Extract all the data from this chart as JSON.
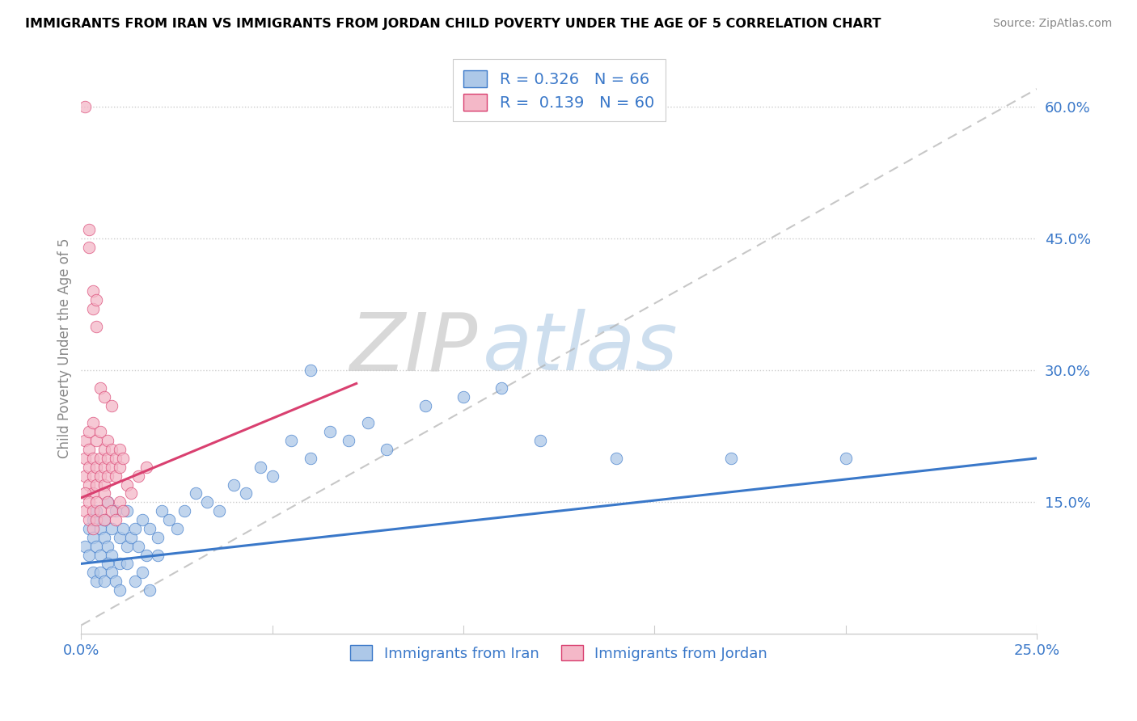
{
  "title": "IMMIGRANTS FROM IRAN VS IMMIGRANTS FROM JORDAN CHILD POVERTY UNDER THE AGE OF 5 CORRELATION CHART",
  "source": "Source: ZipAtlas.com",
  "ylabel": "Child Poverty Under the Age of 5",
  "xlim": [
    0.0,
    0.25
  ],
  "ylim": [
    0.0,
    0.65
  ],
  "yticks": [
    0.15,
    0.3,
    0.45,
    0.6
  ],
  "yticklabels": [
    "15.0%",
    "30.0%",
    "45.0%",
    "60.0%"
  ],
  "iran_color": "#adc8e8",
  "jordan_color": "#f4b8c8",
  "iran_line_color": "#3a78c9",
  "jordan_line_color": "#d94070",
  "text_color": "#3a78c9",
  "R_iran": 0.326,
  "N_iran": 66,
  "R_jordan": 0.139,
  "N_jordan": 60,
  "watermark_zip": "ZIP",
  "watermark_atlas": "atlas",
  "iran_scatter_x": [
    0.001,
    0.002,
    0.002,
    0.003,
    0.003,
    0.004,
    0.004,
    0.005,
    0.005,
    0.006,
    0.006,
    0.007,
    0.007,
    0.008,
    0.008,
    0.009,
    0.01,
    0.01,
    0.011,
    0.012,
    0.012,
    0.013,
    0.014,
    0.015,
    0.016,
    0.017,
    0.018,
    0.02,
    0.021,
    0.023,
    0.025,
    0.027,
    0.03,
    0.033,
    0.036,
    0.04,
    0.043,
    0.047,
    0.05,
    0.055,
    0.06,
    0.065,
    0.07,
    0.075,
    0.08,
    0.09,
    0.1,
    0.11,
    0.12,
    0.14,
    0.003,
    0.004,
    0.005,
    0.006,
    0.007,
    0.008,
    0.009,
    0.01,
    0.012,
    0.014,
    0.016,
    0.018,
    0.02,
    0.06,
    0.17,
    0.2
  ],
  "iran_scatter_y": [
    0.1,
    0.09,
    0.12,
    0.11,
    0.13,
    0.1,
    0.14,
    0.09,
    0.12,
    0.11,
    0.13,
    0.1,
    0.15,
    0.09,
    0.12,
    0.14,
    0.11,
    0.08,
    0.12,
    0.1,
    0.14,
    0.11,
    0.12,
    0.1,
    0.13,
    0.09,
    0.12,
    0.11,
    0.14,
    0.13,
    0.12,
    0.14,
    0.16,
    0.15,
    0.14,
    0.17,
    0.16,
    0.19,
    0.18,
    0.22,
    0.2,
    0.23,
    0.22,
    0.24,
    0.21,
    0.26,
    0.27,
    0.28,
    0.22,
    0.2,
    0.07,
    0.06,
    0.07,
    0.06,
    0.08,
    0.07,
    0.06,
    0.05,
    0.08,
    0.06,
    0.07,
    0.05,
    0.09,
    0.3,
    0.2,
    0.2
  ],
  "jordan_scatter_x": [
    0.001,
    0.001,
    0.001,
    0.002,
    0.002,
    0.002,
    0.002,
    0.003,
    0.003,
    0.003,
    0.003,
    0.004,
    0.004,
    0.004,
    0.005,
    0.005,
    0.005,
    0.006,
    0.006,
    0.006,
    0.007,
    0.007,
    0.007,
    0.008,
    0.008,
    0.009,
    0.009,
    0.01,
    0.01,
    0.011,
    0.001,
    0.001,
    0.002,
    0.002,
    0.003,
    0.003,
    0.004,
    0.004,
    0.005,
    0.006,
    0.006,
    0.007,
    0.008,
    0.009,
    0.01,
    0.011,
    0.012,
    0.013,
    0.015,
    0.017,
    0.001,
    0.002,
    0.002,
    0.003,
    0.003,
    0.004,
    0.004,
    0.005,
    0.006,
    0.008
  ],
  "jordan_scatter_y": [
    0.18,
    0.2,
    0.22,
    0.17,
    0.19,
    0.21,
    0.23,
    0.16,
    0.18,
    0.2,
    0.24,
    0.17,
    0.19,
    0.22,
    0.18,
    0.2,
    0.23,
    0.17,
    0.19,
    0.21,
    0.18,
    0.2,
    0.22,
    0.19,
    0.21,
    0.18,
    0.2,
    0.19,
    0.21,
    0.2,
    0.14,
    0.16,
    0.13,
    0.15,
    0.12,
    0.14,
    0.13,
    0.15,
    0.14,
    0.16,
    0.13,
    0.15,
    0.14,
    0.13,
    0.15,
    0.14,
    0.17,
    0.16,
    0.18,
    0.19,
    0.6,
    0.44,
    0.46,
    0.37,
    0.39,
    0.35,
    0.38,
    0.28,
    0.27,
    0.26
  ],
  "iran_trend": [
    0.0,
    0.25,
    0.08,
    0.2
  ],
  "jordan_trend": [
    0.0,
    0.072,
    0.155,
    0.285
  ],
  "dashed_line": [
    0.0,
    0.25,
    0.01,
    0.62
  ]
}
